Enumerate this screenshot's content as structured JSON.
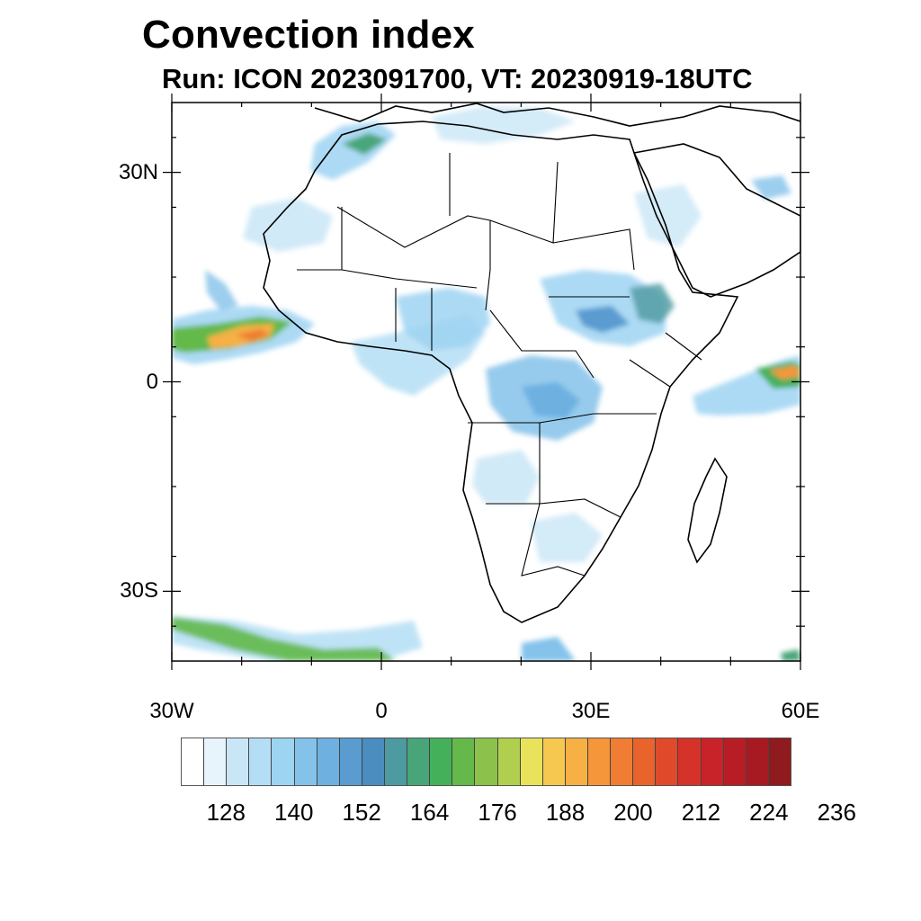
{
  "title": "Convection index",
  "subtitle": "Run: ICON 2023091700,  VT: 20230919-18UTC",
  "lat_ticks": [
    {
      "label": "30N",
      "lat": 30
    },
    {
      "label": "0",
      "lat": 0
    },
    {
      "label": "30S",
      "lat": -30
    }
  ],
  "lon_ticks": [
    {
      "label": "30W",
      "lon": -30
    },
    {
      "label": "0",
      "lon": 0
    },
    {
      "label": "30E",
      "lon": 30
    },
    {
      "label": "60E",
      "lon": 60
    }
  ],
  "extent": {
    "lon_min": -30,
    "lon_max": 60,
    "lat_min": -40,
    "lat_max": 40
  },
  "colorbar": {
    "colors": [
      "#ffffff",
      "#e8f4fb",
      "#c9e6f6",
      "#b4def5",
      "#9dd4f2",
      "#84c2ea",
      "#6eb1e1",
      "#5a9bd0",
      "#4a8dbe",
      "#4d9aa0",
      "#48a57a",
      "#45b05a",
      "#64b94a",
      "#8cc24c",
      "#b1cf4e",
      "#e8e35a",
      "#f6c84f",
      "#f6b044",
      "#f5963a",
      "#ef7d33",
      "#e9642d",
      "#e04a2a",
      "#d53329",
      "#c82328",
      "#b81d25",
      "#a81a22",
      "#8f1b1e"
    ],
    "labels": [
      "128",
      "140",
      "152",
      "164",
      "176",
      "188",
      "200",
      "212",
      "224",
      "236"
    ]
  }
}
